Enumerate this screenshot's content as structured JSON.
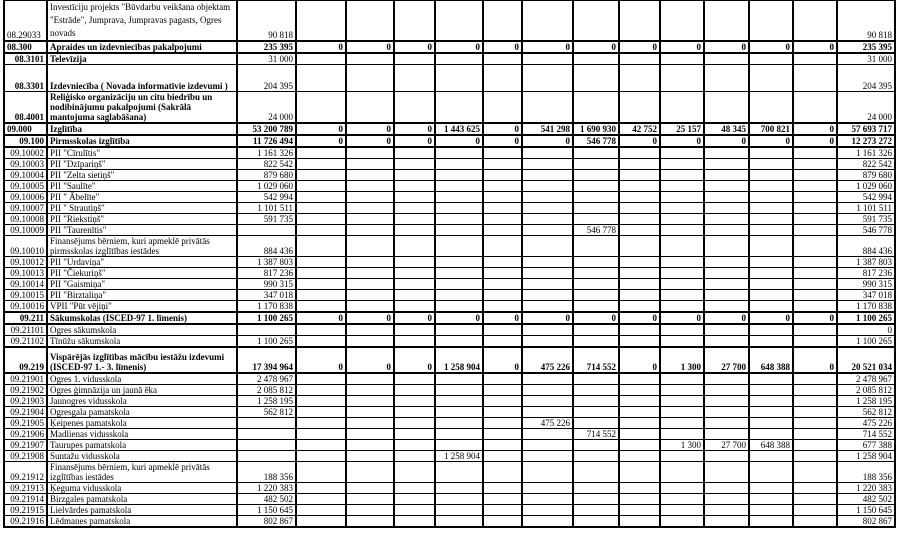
{
  "table": {
    "description": "Budget expenditure table (Latvian municipality), codes with institution names and amounts",
    "rows": [
      {
        "code": "08.29033",
        "name": "Investīciju projekts \"Būvdarbu veikšana objektam \"Estrāde\", Jumprava, Jumpravas pagasts, Ogres novads",
        "emphasis": "none",
        "values": [
          "90 818",
          "",
          "",
          "",
          "",
          "",
          "",
          "",
          "",
          "",
          "",
          "",
          "",
          "90 818"
        ]
      },
      {
        "code": "08.300",
        "name": "Apraides un izdevniecības pakalpojumi",
        "emphasis": "section",
        "values": [
          "235 395",
          "0",
          "0",
          "0",
          "0",
          "0",
          "0",
          "0",
          "0",
          "0",
          "0",
          "0",
          "0",
          "235 395"
        ]
      },
      {
        "code": "08.3101",
        "name": "Televīzija",
        "emphasis": "sub",
        "values": [
          "31 000",
          "",
          "",
          "",
          "",
          "",
          "",
          "",
          "",
          "",
          "",
          "",
          "",
          "31 000"
        ]
      },
      {
        "code": "08.3301",
        "name": "Izdevniecība ( Novada informatīvie izdevumi )",
        "emphasis": "sub",
        "values": [
          "204 395",
          "",
          "",
          "",
          "",
          "",
          "",
          "",
          "",
          "",
          "",
          "",
          "",
          "204 395"
        ]
      },
      {
        "code": "08.4001",
        "name": "Reliģisko organizāciju un citu biedrību un nodibinājumu pakalpojumi (Sakrālā mantojuma saglabāšana)",
        "emphasis": "sub",
        "values": [
          "24 000",
          "",
          "",
          "",
          "",
          "",
          "",
          "",
          "",
          "",
          "",
          "",
          "",
          "24 000"
        ]
      },
      {
        "code": "09.000",
        "name": "Izglītība",
        "emphasis": "section",
        "values": [
          "53 200 789",
          "0",
          "0",
          "0",
          "1 443 625",
          "0",
          "541 298",
          "1 690 930",
          "42 752",
          "25 157",
          "48 345",
          "700 821",
          "0",
          "57 693 717"
        ]
      },
      {
        "code": "09.100",
        "name": "Pirmsskolas izglītība",
        "emphasis": "section",
        "values": [
          "11 726 494",
          "0",
          "0",
          "0",
          "0",
          "0",
          "0",
          "546 778",
          "0",
          "0",
          "0",
          "0",
          "0",
          "12 273 272"
        ]
      },
      {
        "code": "09.10002",
        "name": "PII  \"Cīrulītis\"",
        "emphasis": "none",
        "values": [
          "1 161 326",
          "",
          "",
          "",
          "",
          "",
          "",
          "",
          "",
          "",
          "",
          "",
          "",
          "1 161 326"
        ]
      },
      {
        "code": "09.10003",
        "name": "PII  \"Dzīpariņš\"",
        "emphasis": "none",
        "values": [
          "822 542",
          "",
          "",
          "",
          "",
          "",
          "",
          "",
          "",
          "",
          "",
          "",
          "",
          "822 542"
        ]
      },
      {
        "code": "09.10004",
        "name": "PII  \"Zelta sietiņš\"",
        "emphasis": "none",
        "values": [
          "879 680",
          "",
          "",
          "",
          "",
          "",
          "",
          "",
          "",
          "",
          "",
          "",
          "",
          "879 680"
        ]
      },
      {
        "code": "09.10005",
        "name": "PII  \"Saulīte\"",
        "emphasis": "none",
        "values": [
          "1 029 060",
          "",
          "",
          "",
          "",
          "",
          "",
          "",
          "",
          "",
          "",
          "",
          "",
          "1 029 060"
        ]
      },
      {
        "code": "09.10006",
        "name": "PII \" Ābelīte\"",
        "emphasis": "none",
        "values": [
          "542 994",
          "",
          "",
          "",
          "",
          "",
          "",
          "",
          "",
          "",
          "",
          "",
          "",
          "542 994"
        ]
      },
      {
        "code": "09.10007",
        "name": "PII \" Strautiņš\"",
        "emphasis": "none",
        "values": [
          "1 101 511",
          "",
          "",
          "",
          "",
          "",
          "",
          "",
          "",
          "",
          "",
          "",
          "",
          "1 101 511"
        ]
      },
      {
        "code": "09.10008",
        "name": "PII \"Riekstiņš\"",
        "emphasis": "none",
        "values": [
          "591 735",
          "",
          "",
          "",
          "",
          "",
          "",
          "",
          "",
          "",
          "",
          "",
          "",
          "591 735"
        ]
      },
      {
        "code": "09.10009",
        "name": "PII \"Taurenītis\"",
        "emphasis": "none",
        "values": [
          "",
          "",
          "",
          "",
          "",
          "",
          "",
          "546 778",
          "",
          "",
          "",
          "",
          "",
          "546 778"
        ]
      },
      {
        "code": "09.10010",
        "name": "Finansējums bērniem, kuri apmeklē privātās pirmsskolas izglītības iestādes",
        "emphasis": "none",
        "values": [
          "884 436",
          "",
          "",
          "",
          "",
          "",
          "",
          "",
          "",
          "",
          "",
          "",
          "",
          "884 436"
        ]
      },
      {
        "code": "09.10012",
        "name": "PII \"Urdaviņa\"",
        "emphasis": "none",
        "values": [
          "1 387 803",
          "",
          "",
          "",
          "",
          "",
          "",
          "",
          "",
          "",
          "",
          "",
          "",
          "1 387 803"
        ]
      },
      {
        "code": "09.10013",
        "name": "PII \"Čiekuriņš\"",
        "emphasis": "none",
        "values": [
          "817 236",
          "",
          "",
          "",
          "",
          "",
          "",
          "",
          "",
          "",
          "",
          "",
          "",
          "817 236"
        ]
      },
      {
        "code": "09.10014",
        "name": "PII \"Gaismiņa\"",
        "emphasis": "none",
        "values": [
          "990 315",
          "",
          "",
          "",
          "",
          "",
          "",
          "",
          "",
          "",
          "",
          "",
          "",
          "990 315"
        ]
      },
      {
        "code": "09.10015",
        "name": "PII \"Birztaliņa\"",
        "emphasis": "none",
        "values": [
          "347 018",
          "",
          "",
          "",
          "",
          "",
          "",
          "",
          "",
          "",
          "",
          "",
          "",
          "347 018"
        ]
      },
      {
        "code": "09.10016",
        "name": "VPII \"Pūt vējiņi\"",
        "emphasis": "none",
        "values": [
          "1 170 838",
          "",
          "",
          "",
          "",
          "",
          "",
          "",
          "",
          "",
          "",
          "",
          "",
          "1 170 838"
        ]
      },
      {
        "code": "09.211",
        "name": "Sākumskolas (ISCED-97 1. līmenis)",
        "emphasis": "section",
        "values": [
          "1 100 265",
          "0",
          "0",
          "0",
          "0",
          "0",
          "0",
          "0",
          "0",
          "0",
          "0",
          "0",
          "0",
          "1 100 265"
        ]
      },
      {
        "code": "09.21101",
        "name": "Ogres sākumskola",
        "emphasis": "none",
        "values": [
          "",
          "",
          "",
          "",
          "",
          "",
          "",
          "",
          "",
          "",
          "",
          "",
          "",
          "0"
        ]
      },
      {
        "code": "09.21102",
        "name": "Tīnūžu sākumskola",
        "emphasis": "none",
        "values": [
          "1 100 265",
          "",
          "",
          "",
          "",
          "",
          "",
          "",
          "",
          "",
          "",
          "",
          "",
          "1 100 265"
        ]
      },
      {
        "code": "09.219",
        "name": "Vispārējās izglītības mācību iestāžu izdevumi (ISCED-97 1.- 3. līmenis)",
        "emphasis": "section",
        "values": [
          "17 394 964",
          "0",
          "0",
          "0",
          "1 258 904",
          "0",
          "475 226",
          "714 552",
          "0",
          "1 300",
          "27 700",
          "648 388",
          "0",
          "20 521 034"
        ]
      },
      {
        "code": "09.21901",
        "name": "Ogres 1. vidusskola",
        "emphasis": "none",
        "values": [
          "2 478 967",
          "",
          "",
          "",
          "",
          "",
          "",
          "",
          "",
          "",
          "",
          "",
          "",
          "2 478 967"
        ]
      },
      {
        "code": "09.21902",
        "name": "Ogres ģimnāzija un jaunā ēka",
        "emphasis": "none",
        "values": [
          "2 085 812",
          "",
          "",
          "",
          "",
          "",
          "",
          "",
          "",
          "",
          "",
          "",
          "",
          "2 085 812"
        ]
      },
      {
        "code": "09.21903",
        "name": "Jaunogres vidusskola",
        "emphasis": "none",
        "values": [
          "1 258 195",
          "",
          "",
          "",
          "",
          "",
          "",
          "",
          "",
          "",
          "",
          "",
          "",
          "1 258 195"
        ]
      },
      {
        "code": "09.21904",
        "name": "Ogresgala pamatskola",
        "emphasis": "none",
        "values": [
          "562 812",
          "",
          "",
          "",
          "",
          "",
          "",
          "",
          "",
          "",
          "",
          "",
          "",
          "562 812"
        ]
      },
      {
        "code": "09.21905",
        "name": "Ķeipenes pamatskola",
        "emphasis": "none",
        "values": [
          "",
          "",
          "",
          "",
          "",
          "",
          "475 226",
          "",
          "",
          "",
          "",
          "",
          "",
          "475 226"
        ]
      },
      {
        "code": "09.21906",
        "name": "Madlienas vidusskola",
        "emphasis": "none",
        "values": [
          "",
          "",
          "",
          "",
          "",
          "",
          "",
          "714 552",
          "",
          "",
          "",
          "",
          "",
          "714 552"
        ]
      },
      {
        "code": "09.21907",
        "name": "Taurupes pamatskola",
        "emphasis": "none",
        "values": [
          "",
          "",
          "",
          "",
          "",
          "",
          "",
          "",
          "",
          "1 300",
          "27 700",
          "648 388",
          "",
          "677 388"
        ]
      },
      {
        "code": "09.21908",
        "name": "Suntažu vidusskola",
        "emphasis": "none",
        "values": [
          "",
          "",
          "",
          "",
          "1 258 904",
          "",
          "",
          "",
          "",
          "",
          "",
          "",
          "",
          "1 258 904"
        ]
      },
      {
        "code": "09.21912",
        "name": "Finansējums bērniem, kuri apmeklē privātās izglītības iestādes",
        "emphasis": "none",
        "values": [
          "188 356",
          "",
          "",
          "",
          "",
          "",
          "",
          "",
          "",
          "",
          "",
          "",
          "",
          "188 356"
        ]
      },
      {
        "code": "09.21913",
        "name": "Ķeguma vidusskola",
        "emphasis": "none",
        "values": [
          "1 220 383",
          "",
          "",
          "",
          "",
          "",
          "",
          "",
          "",
          "",
          "",
          "",
          "",
          "1 220 383"
        ]
      },
      {
        "code": "09.21914",
        "name": "Birzgales pamatskola",
        "emphasis": "none",
        "values": [
          "482 502",
          "",
          "",
          "",
          "",
          "",
          "",
          "",
          "",
          "",
          "",
          "",
          "",
          "482 502"
        ]
      },
      {
        "code": "09.21915",
        "name": "Lielvārdes pamatskola",
        "emphasis": "none",
        "values": [
          "1 150 645",
          "",
          "",
          "",
          "",
          "",
          "",
          "",
          "",
          "",
          "",
          "",
          "",
          "1 150 645"
        ]
      },
      {
        "code": "09.21916",
        "name": "Lēdmanes pamatskola",
        "emphasis": "none",
        "values": [
          "802 867",
          "",
          "",
          "",
          "",
          "",
          "",
          "",
          "",
          "",
          "",
          "",
          "",
          "802 867"
        ]
      }
    ]
  }
}
